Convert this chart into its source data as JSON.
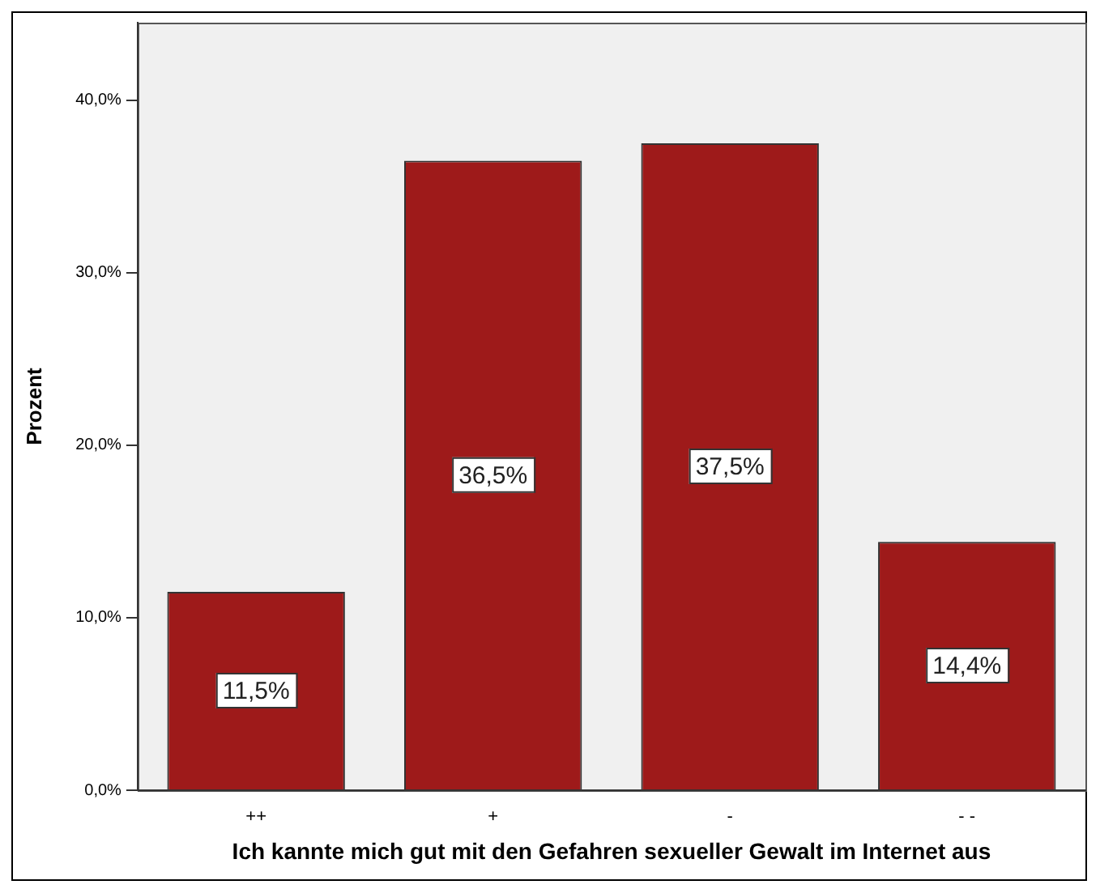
{
  "chart_data": {
    "type": "bar",
    "xlabel": "Ich kannte mich gut mit den Gefahren sexueller Gewalt im Internet aus",
    "ylabel": "Prozent",
    "categories": [
      "++",
      "+",
      "-",
      "- -"
    ],
    "values": [
      11.5,
      36.5,
      37.5,
      14.4
    ],
    "value_labels": [
      "11,5%",
      "36,5%",
      "37,5%",
      "14,4%"
    ],
    "color": "#9e1a1a",
    "ylim": [
      0,
      44.5
    ],
    "yticks": [
      {
        "value": 0,
        "label": "0,0%"
      },
      {
        "value": 10,
        "label": "10,0%"
      },
      {
        "value": 20,
        "label": "20,0%"
      },
      {
        "value": 30,
        "label": "30,0%"
      },
      {
        "value": 40,
        "label": "40,0%"
      }
    ],
    "grid": false,
    "legend": false
  }
}
